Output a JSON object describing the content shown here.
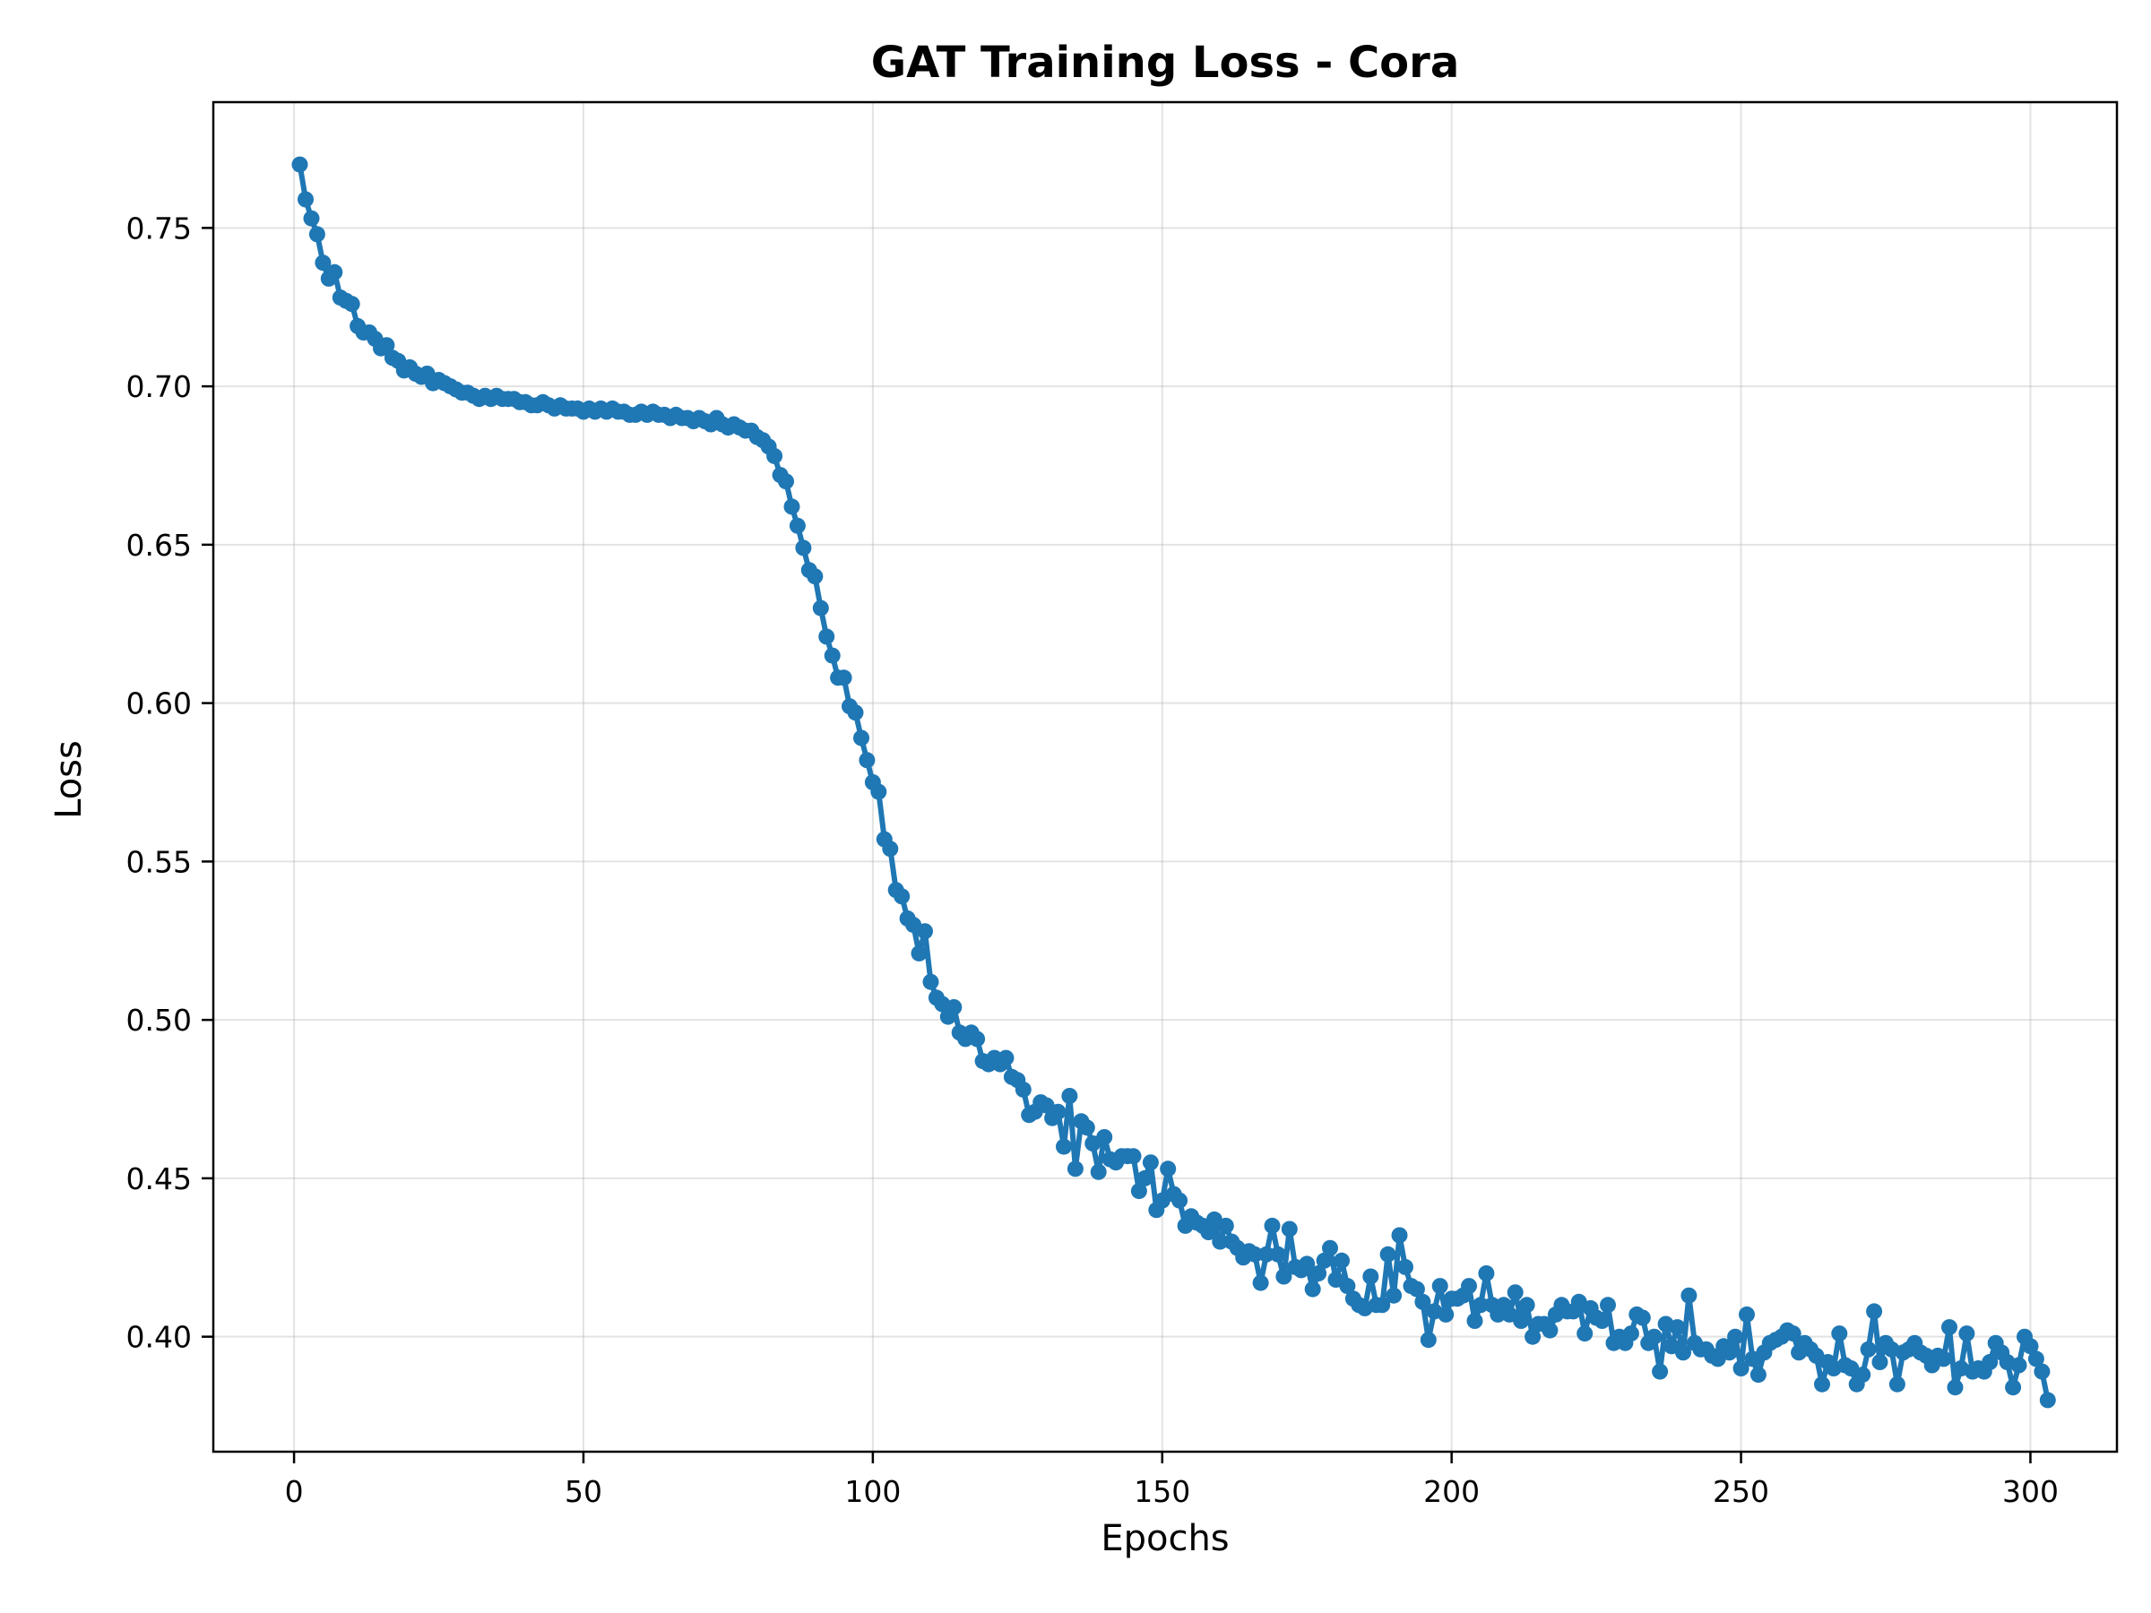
{
  "chart_data": {
    "type": "line",
    "title": "GAT Training Loss - Cora",
    "xlabel": "Epochs",
    "ylabel": "Loss",
    "xlim": [
      -13.95,
      314.95
    ],
    "ylim": [
      0.3637,
      0.7897
    ],
    "xticks": [
      0,
      50,
      100,
      150,
      200,
      250,
      300
    ],
    "xtick_labels": [
      "0",
      "50",
      "100",
      "150",
      "200",
      "250",
      "300"
    ],
    "yticks": [
      0.4,
      0.45,
      0.5,
      0.55,
      0.6,
      0.65,
      0.7,
      0.75
    ],
    "ytick_labels": [
      "0.40",
      "0.45",
      "0.50",
      "0.55",
      "0.60",
      "0.65",
      "0.70",
      "0.75"
    ],
    "grid": true,
    "line_color": "#1f77b4",
    "marker": "circle",
    "series": [
      {
        "x_start": 1,
        "x_step": 1,
        "values": [
          0.77,
          0.759,
          0.753,
          0.748,
          0.739,
          0.734,
          0.736,
          0.728,
          0.727,
          0.726,
          0.719,
          0.717,
          0.717,
          0.715,
          0.712,
          0.713,
          0.709,
          0.708,
          0.705,
          0.706,
          0.704,
          0.703,
          0.704,
          0.701,
          0.702,
          0.701,
          0.7,
          0.699,
          0.698,
          0.698,
          0.697,
          0.696,
          0.697,
          0.696,
          0.697,
          0.696,
          0.696,
          0.696,
          0.695,
          0.695,
          0.694,
          0.694,
          0.695,
          0.694,
          0.693,
          0.694,
          0.693,
          0.693,
          0.693,
          0.692,
          0.693,
          0.692,
          0.693,
          0.692,
          0.693,
          0.692,
          0.692,
          0.691,
          0.691,
          0.692,
          0.691,
          0.692,
          0.691,
          0.691,
          0.69,
          0.691,
          0.69,
          0.69,
          0.689,
          0.69,
          0.689,
          0.688,
          0.69,
          0.688,
          0.687,
          0.688,
          0.687,
          0.686,
          0.686,
          0.684,
          0.683,
          0.681,
          0.678,
          0.672,
          0.67,
          0.662,
          0.656,
          0.649,
          0.642,
          0.64,
          0.63,
          0.621,
          0.615,
          0.608,
          0.608,
          0.599,
          0.597,
          0.589,
          0.582,
          0.575,
          0.572,
          0.557,
          0.554,
          0.541,
          0.539,
          0.532,
          0.53,
          0.521,
          0.528,
          0.512,
          0.507,
          0.505,
          0.501,
          0.504,
          0.496,
          0.494,
          0.496,
          0.494,
          0.487,
          0.486,
          0.488,
          0.486,
          0.488,
          0.482,
          0.481,
          0.478,
          0.47,
          0.471,
          0.474,
          0.473,
          0.469,
          0.471,
          0.46,
          0.476,
          0.453,
          0.468,
          0.466,
          0.461,
          0.452,
          0.463,
          0.456,
          0.455,
          0.457,
          0.457,
          0.457,
          0.446,
          0.45,
          0.455,
          0.44,
          0.443,
          0.453,
          0.445,
          0.443,
          0.435,
          0.438,
          0.436,
          0.435,
          0.433,
          0.437,
          0.43,
          0.435,
          0.43,
          0.428,
          0.425,
          0.427,
          0.426,
          0.417,
          0.426,
          0.435,
          0.426,
          0.419,
          0.434,
          0.422,
          0.421,
          0.423,
          0.415,
          0.42,
          0.424,
          0.428,
          0.418,
          0.424,
          0.416,
          0.412,
          0.41,
          0.409,
          0.419,
          0.41,
          0.41,
          0.426,
          0.413,
          0.432,
          0.422,
          0.416,
          0.415,
          0.411,
          0.399,
          0.408,
          0.416,
          0.407,
          0.412,
          0.412,
          0.413,
          0.416,
          0.405,
          0.41,
          0.42,
          0.41,
          0.407,
          0.41,
          0.407,
          0.414,
          0.405,
          0.41,
          0.4,
          0.404,
          0.404,
          0.402,
          0.407,
          0.41,
          0.408,
          0.408,
          0.411,
          0.401,
          0.409,
          0.406,
          0.405,
          0.41,
          0.398,
          0.4,
          0.398,
          0.401,
          0.407,
          0.406,
          0.398,
          0.4,
          0.389,
          0.404,
          0.397,
          0.403,
          0.395,
          0.413,
          0.398,
          0.396,
          0.396,
          0.394,
          0.393,
          0.397,
          0.395,
          0.4,
          0.39,
          0.407,
          0.393,
          0.388,
          0.395,
          0.398,
          0.399,
          0.4,
          0.402,
          0.401,
          0.395,
          0.398,
          0.396,
          0.394,
          0.385,
          0.392,
          0.39,
          0.401,
          0.391,
          0.39,
          0.385,
          0.388,
          0.396,
          0.408,
          0.392,
          0.398,
          0.396,
          0.385,
          0.395,
          0.396,
          0.398,
          0.395,
          0.394,
          0.391,
          0.394,
          0.393,
          0.403,
          0.384,
          0.39,
          0.401,
          0.389,
          0.39,
          0.389,
          0.392,
          0.398,
          0.395,
          0.392,
          0.384,
          0.391,
          0.4,
          0.397,
          0.393,
          0.389,
          0.38
        ]
      }
    ]
  }
}
